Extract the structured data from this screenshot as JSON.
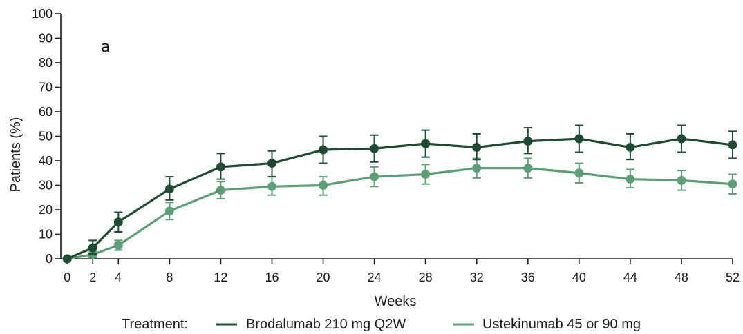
{
  "chart_data": {
    "type": "line",
    "panel_label": "a",
    "xlabel": "Weeks",
    "ylabel": "Patients (%)",
    "x": [
      0,
      2,
      4,
      8,
      12,
      16,
      20,
      24,
      28,
      32,
      36,
      40,
      44,
      48,
      52
    ],
    "x_ticks": [
      0,
      2,
      4,
      8,
      12,
      16,
      20,
      24,
      28,
      32,
      36,
      40,
      44,
      48,
      52
    ],
    "y_ticks": [
      0,
      10,
      20,
      30,
      40,
      50,
      60,
      70,
      80,
      90,
      100
    ],
    "xlim": [
      -0.5,
      52
    ],
    "ylim": [
      0,
      100
    ],
    "grid": false,
    "legend": {
      "title": "Treatment:",
      "placement": "bottom"
    },
    "series": [
      {
        "name": "Brodalumab 210 mg Q2W",
        "color": "#1f4a33",
        "values": [
          0,
          4.5,
          15,
          28.5,
          37.5,
          39,
          44.5,
          45,
          47,
          45.5,
          48,
          49,
          45.5,
          49,
          46.5
        ],
        "error_low": [
          0,
          2,
          11,
          24,
          32.5,
          33.5,
          39,
          39.5,
          41.5,
          40.5,
          43,
          43.5,
          40.5,
          43.5,
          41
        ],
        "error_high": [
          0,
          7.5,
          19,
          33.5,
          43,
          44,
          50,
          50.5,
          52.5,
          51,
          53.5,
          54.5,
          51,
          54.5,
          52
        ]
      },
      {
        "name": "Ustekinumab 45 or 90 mg",
        "color": "#5e9e77",
        "values": [
          0,
          1.8,
          5.5,
          19.5,
          28,
          29.5,
          30,
          33.5,
          34.5,
          37,
          37,
          35,
          32.5,
          32,
          30.5
        ],
        "error_low": [
          0,
          0.5,
          3.5,
          16,
          24.5,
          26,
          26,
          29.5,
          30.5,
          33,
          33,
          31,
          29,
          28,
          26.5
        ],
        "error_high": [
          0,
          3,
          7.5,
          23,
          31.5,
          33.5,
          33.5,
          37.5,
          38.5,
          41,
          41,
          39,
          36.5,
          36,
          34.5
        ]
      }
    ]
  }
}
